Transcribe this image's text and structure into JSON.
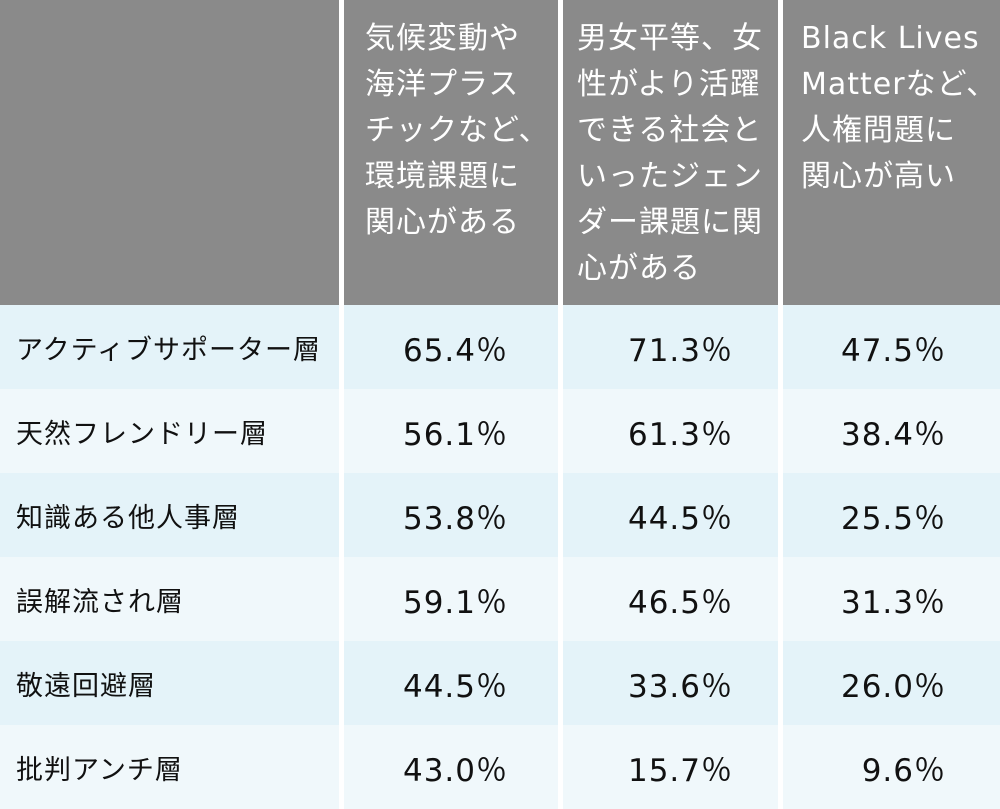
{
  "table": {
    "corner": "",
    "columns": [
      {
        "label": "気候変動や海洋プラスチックなど、環境課題に関心がある",
        "lines": [
          "気候変動や",
          "海洋プラス",
          "チックなど、",
          "環境課題に",
          "関心がある"
        ]
      },
      {
        "label": "男女平等、女性がより活躍できる社会といったジェンダー課題に関心がある",
        "lines": [
          "男女平等、女",
          "性がより活躍",
          "できる社会と",
          "いったジェン",
          "ダー課題に関",
          "心がある"
        ]
      },
      {
        "label": "Black Lives Matterなど、人権問題に関心が高い",
        "lines": [
          "Black Lives",
          "Matterなど、",
          "人権問題に",
          "関心が高い"
        ]
      }
    ],
    "rows": [
      {
        "label": "アクティブサポーター層",
        "values": [
          "65.4％",
          "71.3％",
          "47.5％"
        ]
      },
      {
        "label": "天然フレンドリー層",
        "values": [
          "56.1％",
          "61.3％",
          "38.4％"
        ]
      },
      {
        "label": "知識ある他人事層",
        "values": [
          "53.8％",
          "44.5％",
          "25.5％"
        ]
      },
      {
        "label": "誤解流され層",
        "values": [
          "59.1％",
          "46.5％",
          "31.3％"
        ]
      },
      {
        "label": "敬遠回避層",
        "values": [
          "44.5％",
          "33.6％",
          "26.0％"
        ]
      },
      {
        "label": "批判アンチ層",
        "values": [
          "43.0％",
          "15.7％",
          "9.6％"
        ]
      }
    ]
  },
  "colors": {
    "header_bg": "#8a8a8a",
    "header_text": "#ffffff",
    "row_odd_bg": "#e4f3f9",
    "row_even_bg": "#f0f8fb",
    "body_text": "#111111",
    "divider": "#ffffff"
  }
}
